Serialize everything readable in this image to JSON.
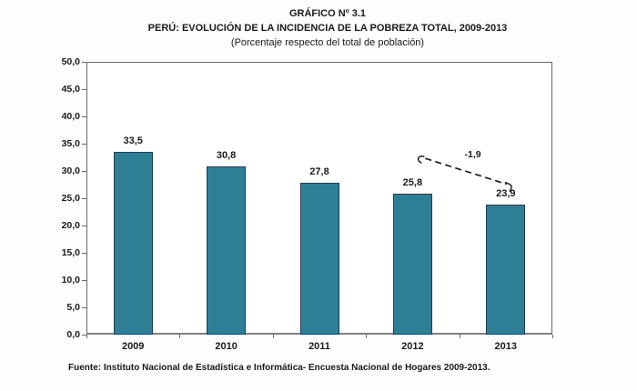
{
  "chart_data": {
    "type": "bar",
    "title": "GRÁFICO Nº 3.1",
    "title_line2": "PERÚ: EVOLUCIÓN DE LA INCIDENCIA DE LA POBREZA TOTAL, 2009-2013",
    "subtitle": "(Porcentaje respecto del total de población)",
    "categories": [
      "2009",
      "2010",
      "2011",
      "2012",
      "2013"
    ],
    "values": [
      33.5,
      30.8,
      27.8,
      25.8,
      23.9
    ],
    "value_labels": [
      "33,5",
      "30,8",
      "27,8",
      "25,8",
      "23,9"
    ],
    "xlabel": "",
    "ylabel": "",
    "ylim": [
      0,
      50
    ],
    "ytick_step": 5,
    "ytick_labels": [
      "50,0",
      "45,0",
      "40,0",
      "35,0",
      "30,0",
      "25,0",
      "20,0",
      "15,0",
      "10,0",
      "5,0",
      "0,0"
    ],
    "grid": false,
    "legend": "none",
    "bar_color": "#2E7F96",
    "bar_border_color": "#1D3D5C",
    "annotation": {
      "label": "-1,9",
      "from_category": "2012",
      "to_category": "2013",
      "style": "dashed-line"
    },
    "source": "Fuente: Instituto Nacional de Estadística e Informática- Encuesta Nacional de Hogares 2009-2013."
  }
}
